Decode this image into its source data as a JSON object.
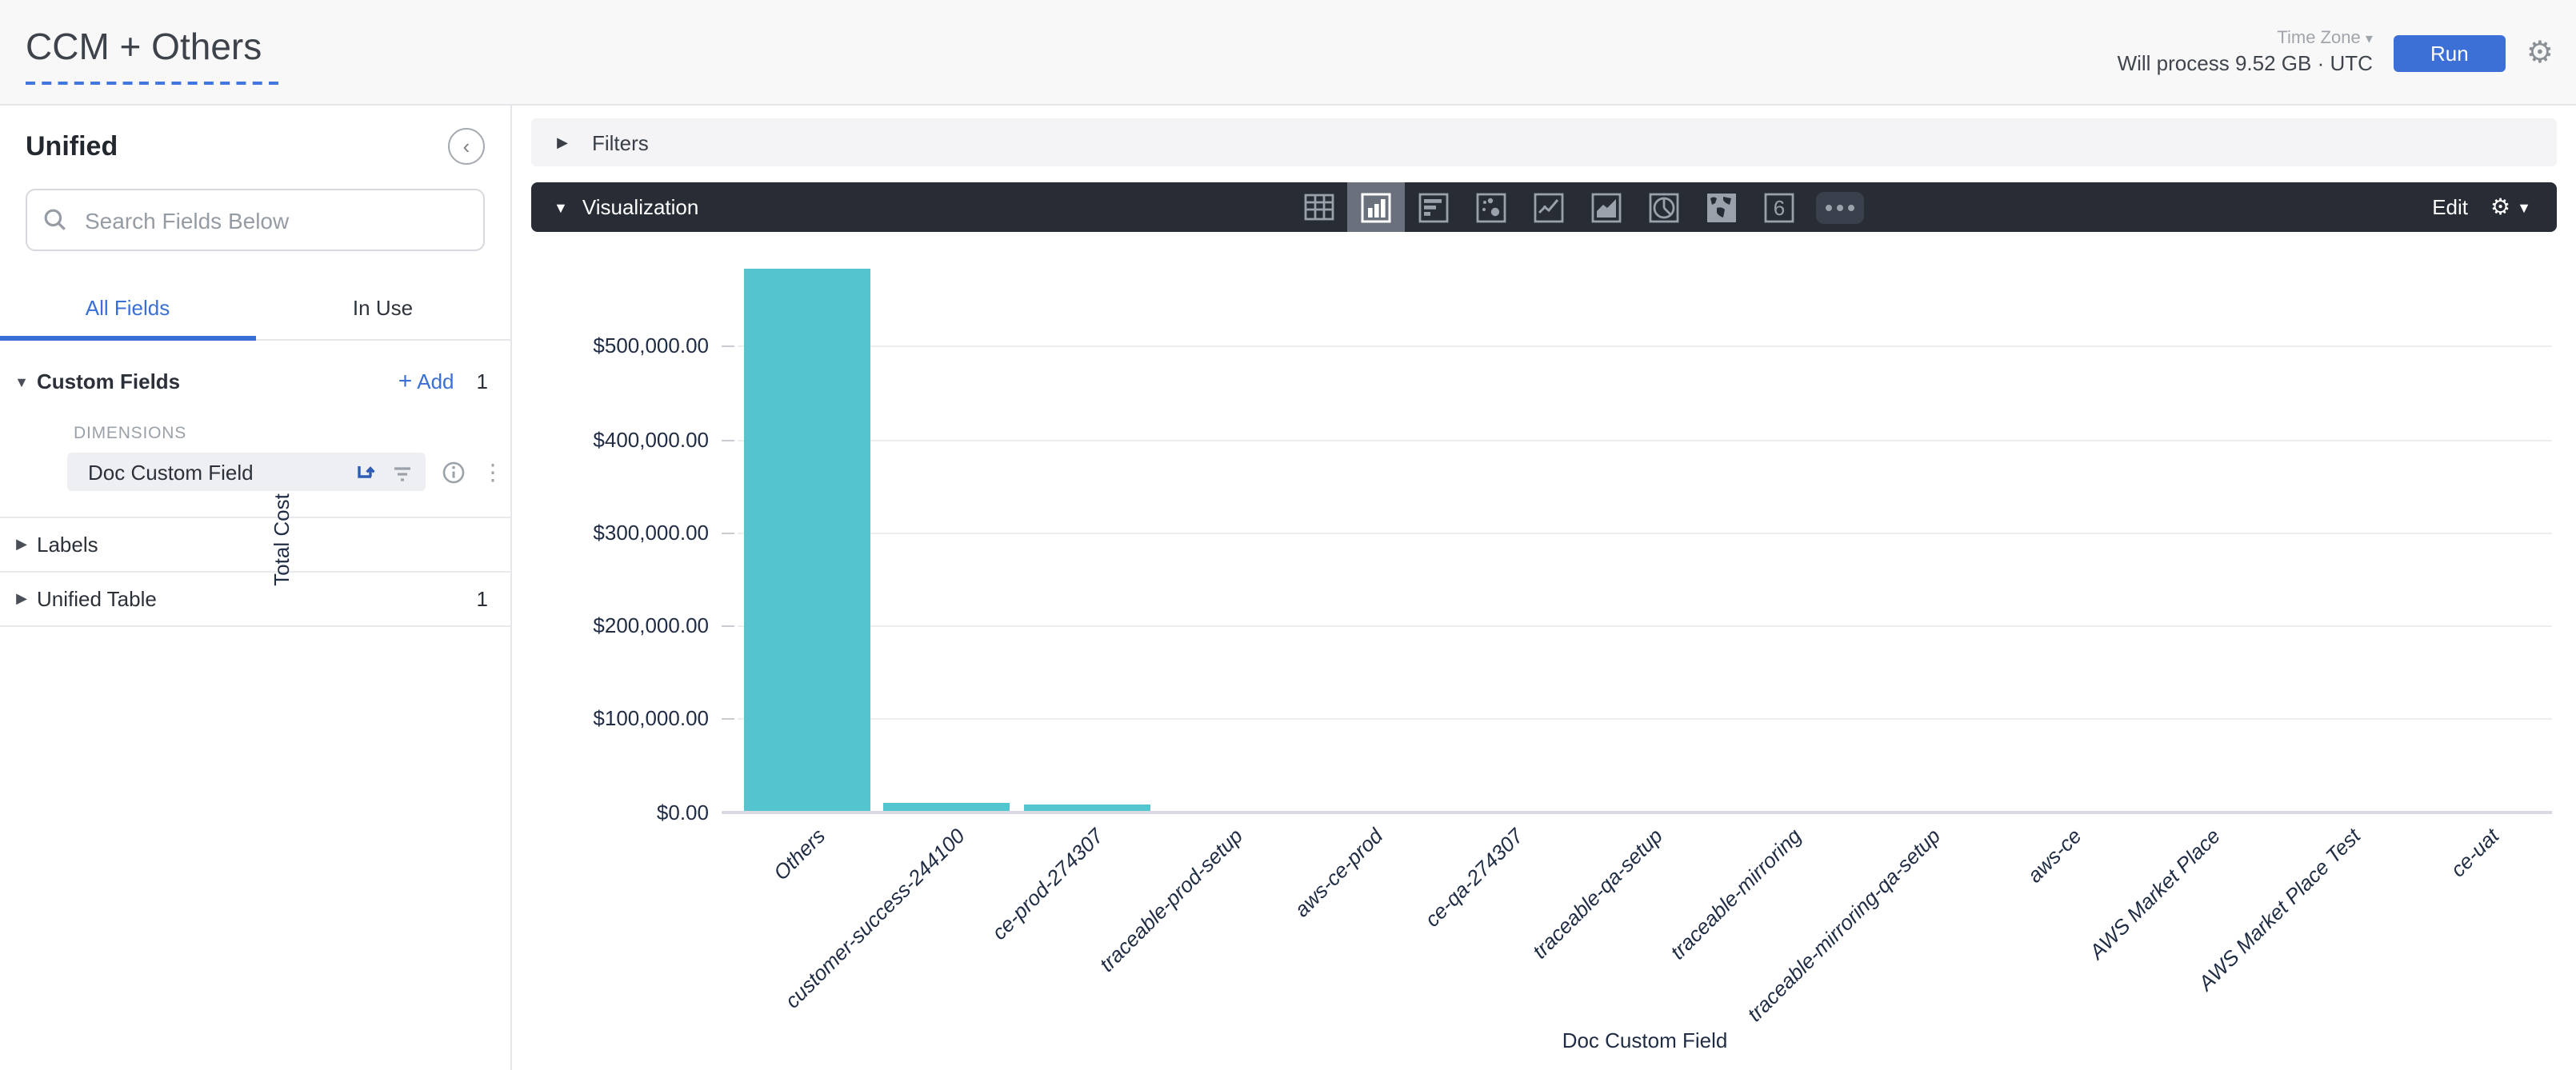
{
  "header": {
    "title": "CCM + Others",
    "timezone_label": "Time Zone",
    "process_info": "Will process 9.52 GB · UTC",
    "run_label": "Run"
  },
  "sidebar": {
    "title": "Unified",
    "search_placeholder": "Search Fields Below",
    "tabs": [
      {
        "label": "All Fields",
        "active": true
      },
      {
        "label": "In Use",
        "active": false
      }
    ],
    "custom_fields": {
      "label": "Custom Fields",
      "add_label": "Add",
      "add_plus": "+",
      "count": "1",
      "group_label": "DIMENSIONS",
      "field_label": "Doc Custom Field"
    },
    "labels_section": {
      "label": "Labels"
    },
    "unified_table_section": {
      "label": "Unified Table",
      "count": "1"
    }
  },
  "filters": {
    "label": "Filters"
  },
  "visualization": {
    "label": "Visualization",
    "edit_label": "Edit",
    "selected_type": "column",
    "icon_names": [
      "table-icon",
      "column-chart-icon",
      "bar-chart-icon",
      "scatter-chart-icon",
      "line-chart-icon",
      "area-chart-icon",
      "pie-chart-icon",
      "map-chart-icon",
      "single-value-icon",
      "more-icon"
    ],
    "single_value_glyph": "6"
  },
  "chart_data": {
    "type": "bar",
    "title": "",
    "xlabel": "Doc Custom Field",
    "ylabel": "Total Cost",
    "categories": [
      "Others",
      "customer-success-244100",
      "ce-prod-274307",
      "traceable-prod-setup",
      "aws-ce-prod",
      "ce-qa-274307",
      "traceable-qa-setup",
      "traceable-mirroring",
      "traceable-mirroring-qa-setup",
      "aws-ce",
      "AWS Market Place",
      "AWS Market Place Test",
      "ce-uat"
    ],
    "values": [
      582000,
      9500,
      7000,
      0,
      0,
      0,
      0,
      0,
      0,
      0,
      0,
      0,
      0
    ],
    "bar_color": "#54c5ce",
    "ylim": [
      0,
      582000
    ],
    "grid": "horizontal-only",
    "legend": "none",
    "y_ticks": [
      {
        "value": 0,
        "label": "$0.00"
      },
      {
        "value": 100000,
        "label": "$100,000.00"
      },
      {
        "value": 200000,
        "label": "$200,000.00"
      },
      {
        "value": 300000,
        "label": "$300,000.00"
      },
      {
        "value": 400000,
        "label": "$400,000.00"
      },
      {
        "value": 500000,
        "label": "$500,000.00"
      }
    ]
  },
  "colors": {
    "accent_blue": "#3a6fd8",
    "run_button": "#3d70d6",
    "toolbar_bg": "#272c35",
    "bar_teal": "#54c5ce",
    "chart_text": "#1f2c44"
  }
}
